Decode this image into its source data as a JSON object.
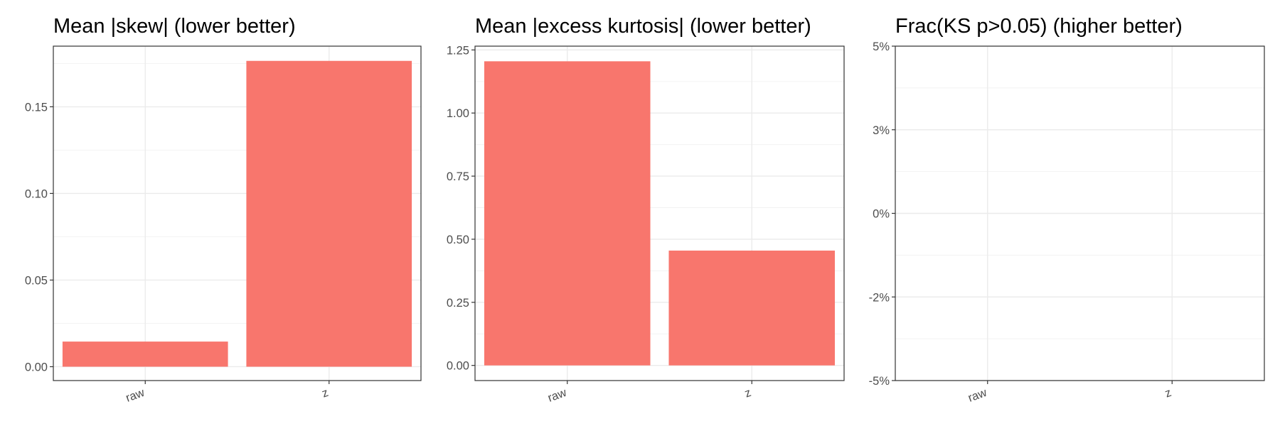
{
  "chart_data": [
    {
      "type": "bar",
      "title": "Mean |skew| (lower better)",
      "categories": [
        "raw",
        "z"
      ],
      "values": [
        0.0145,
        0.1765
      ],
      "ylim": [
        -0.008,
        0.185
      ],
      "yticks": [
        0.0,
        0.05,
        0.1,
        0.15
      ],
      "ytick_labels": [
        "0.00",
        "0.05",
        "0.10",
        "0.15"
      ],
      "bar_color": "#F8766D",
      "grid": true,
      "xlabel": "",
      "ylabel": ""
    },
    {
      "type": "bar",
      "title": "Mean |excess kurtosis| (lower better)",
      "categories": [
        "raw",
        "z"
      ],
      "values": [
        1.205,
        0.455
      ],
      "ylim": [
        -0.06,
        1.265
      ],
      "yticks": [
        0.0,
        0.25,
        0.5,
        0.75,
        1.0,
        1.25
      ],
      "ytick_labels": [
        "0.00",
        "0.25",
        "0.50",
        "0.75",
        "1.00",
        "1.25"
      ],
      "bar_color": "#F8766D",
      "grid": true,
      "xlabel": "",
      "ylabel": ""
    },
    {
      "type": "bar",
      "title": "Frac(KS p>0.05) (higher better)",
      "categories": [
        "raw",
        "z"
      ],
      "values": [
        0,
        0
      ],
      "ylim": [
        -0.05,
        0.05
      ],
      "yticks": [
        -0.05,
        -0.025,
        0,
        0.025,
        0.05
      ],
      "ytick_labels": [
        "-5%",
        "-2%",
        "0%",
        "3%",
        "5%"
      ],
      "bar_color": "#F8766D",
      "grid": true,
      "xlabel": "",
      "ylabel": ""
    }
  ]
}
